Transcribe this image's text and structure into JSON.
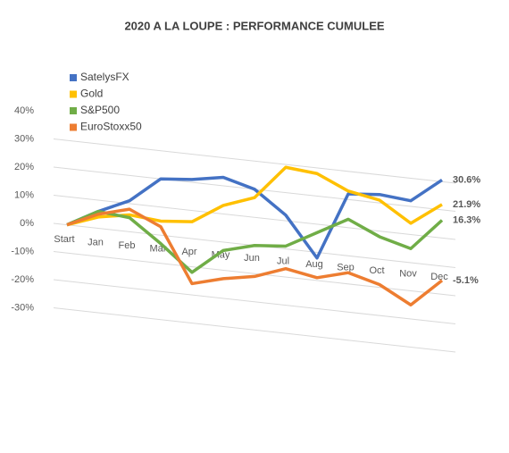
{
  "chart_data": {
    "type": "line",
    "title": "2020 A LA LOUPE : PERFORMANCE CUMULEE",
    "categories": [
      "Start",
      "Jan",
      "Feb",
      "Mar",
      "Apr",
      "May",
      "Jun",
      "Jul",
      "Aug",
      "Sep",
      "Oct",
      "Nov",
      "Dec"
    ],
    "series": [
      {
        "name": "SatelysFX",
        "color": "#4472c4",
        "values": [
          0,
          6,
          11,
          20,
          21,
          23,
          20,
          12,
          -2,
          22,
          23,
          22,
          30.6
        ],
        "value_labels": [
          null,
          null,
          null,
          null,
          null,
          null,
          null,
          null,
          null,
          null,
          null,
          null,
          "30.6%"
        ]
      },
      {
        "name": "Gold",
        "color": "#ffc000",
        "values": [
          0,
          4,
          6,
          5,
          6,
          13,
          17,
          29,
          28,
          23,
          21,
          14,
          21.9
        ],
        "value_labels": [
          null,
          null,
          null,
          null,
          null,
          null,
          null,
          null,
          null,
          null,
          null,
          null,
          "21.9%"
        ]
      },
      {
        "name": "S&P500",
        "color": "#70ad47",
        "values": [
          0,
          6,
          5,
          -3,
          -12,
          -3,
          0,
          1,
          7,
          13,
          8,
          5,
          16.3
        ],
        "value_labels": [
          null,
          null,
          null,
          null,
          null,
          null,
          null,
          null,
          null,
          null,
          null,
          null,
          "16.3%"
        ]
      },
      {
        "name": "EuroStoxx50",
        "color": "#ed7d31",
        "values": [
          0,
          5,
          8,
          3,
          -16,
          -13,
          -11,
          -7,
          -9,
          -6,
          -9,
          -15,
          -5.1
        ],
        "value_labels": [
          null,
          null,
          null,
          null,
          null,
          null,
          null,
          null,
          null,
          null,
          null,
          null,
          "-5.1%"
        ]
      }
    ],
    "ylim": [
      -30,
      40
    ],
    "yticks": [
      {
        "value": -30,
        "label": "-30%"
      },
      {
        "value": -20,
        "label": "-20%"
      },
      {
        "value": -10,
        "label": "-10%"
      },
      {
        "value": 0,
        "label": "0%"
      },
      {
        "value": 10,
        "label": "10%"
      },
      {
        "value": 20,
        "label": "20%"
      },
      {
        "value": 30,
        "label": "30%"
      },
      {
        "value": 40,
        "label": "40%"
      }
    ],
    "grid": true,
    "legend": "top-left"
  }
}
